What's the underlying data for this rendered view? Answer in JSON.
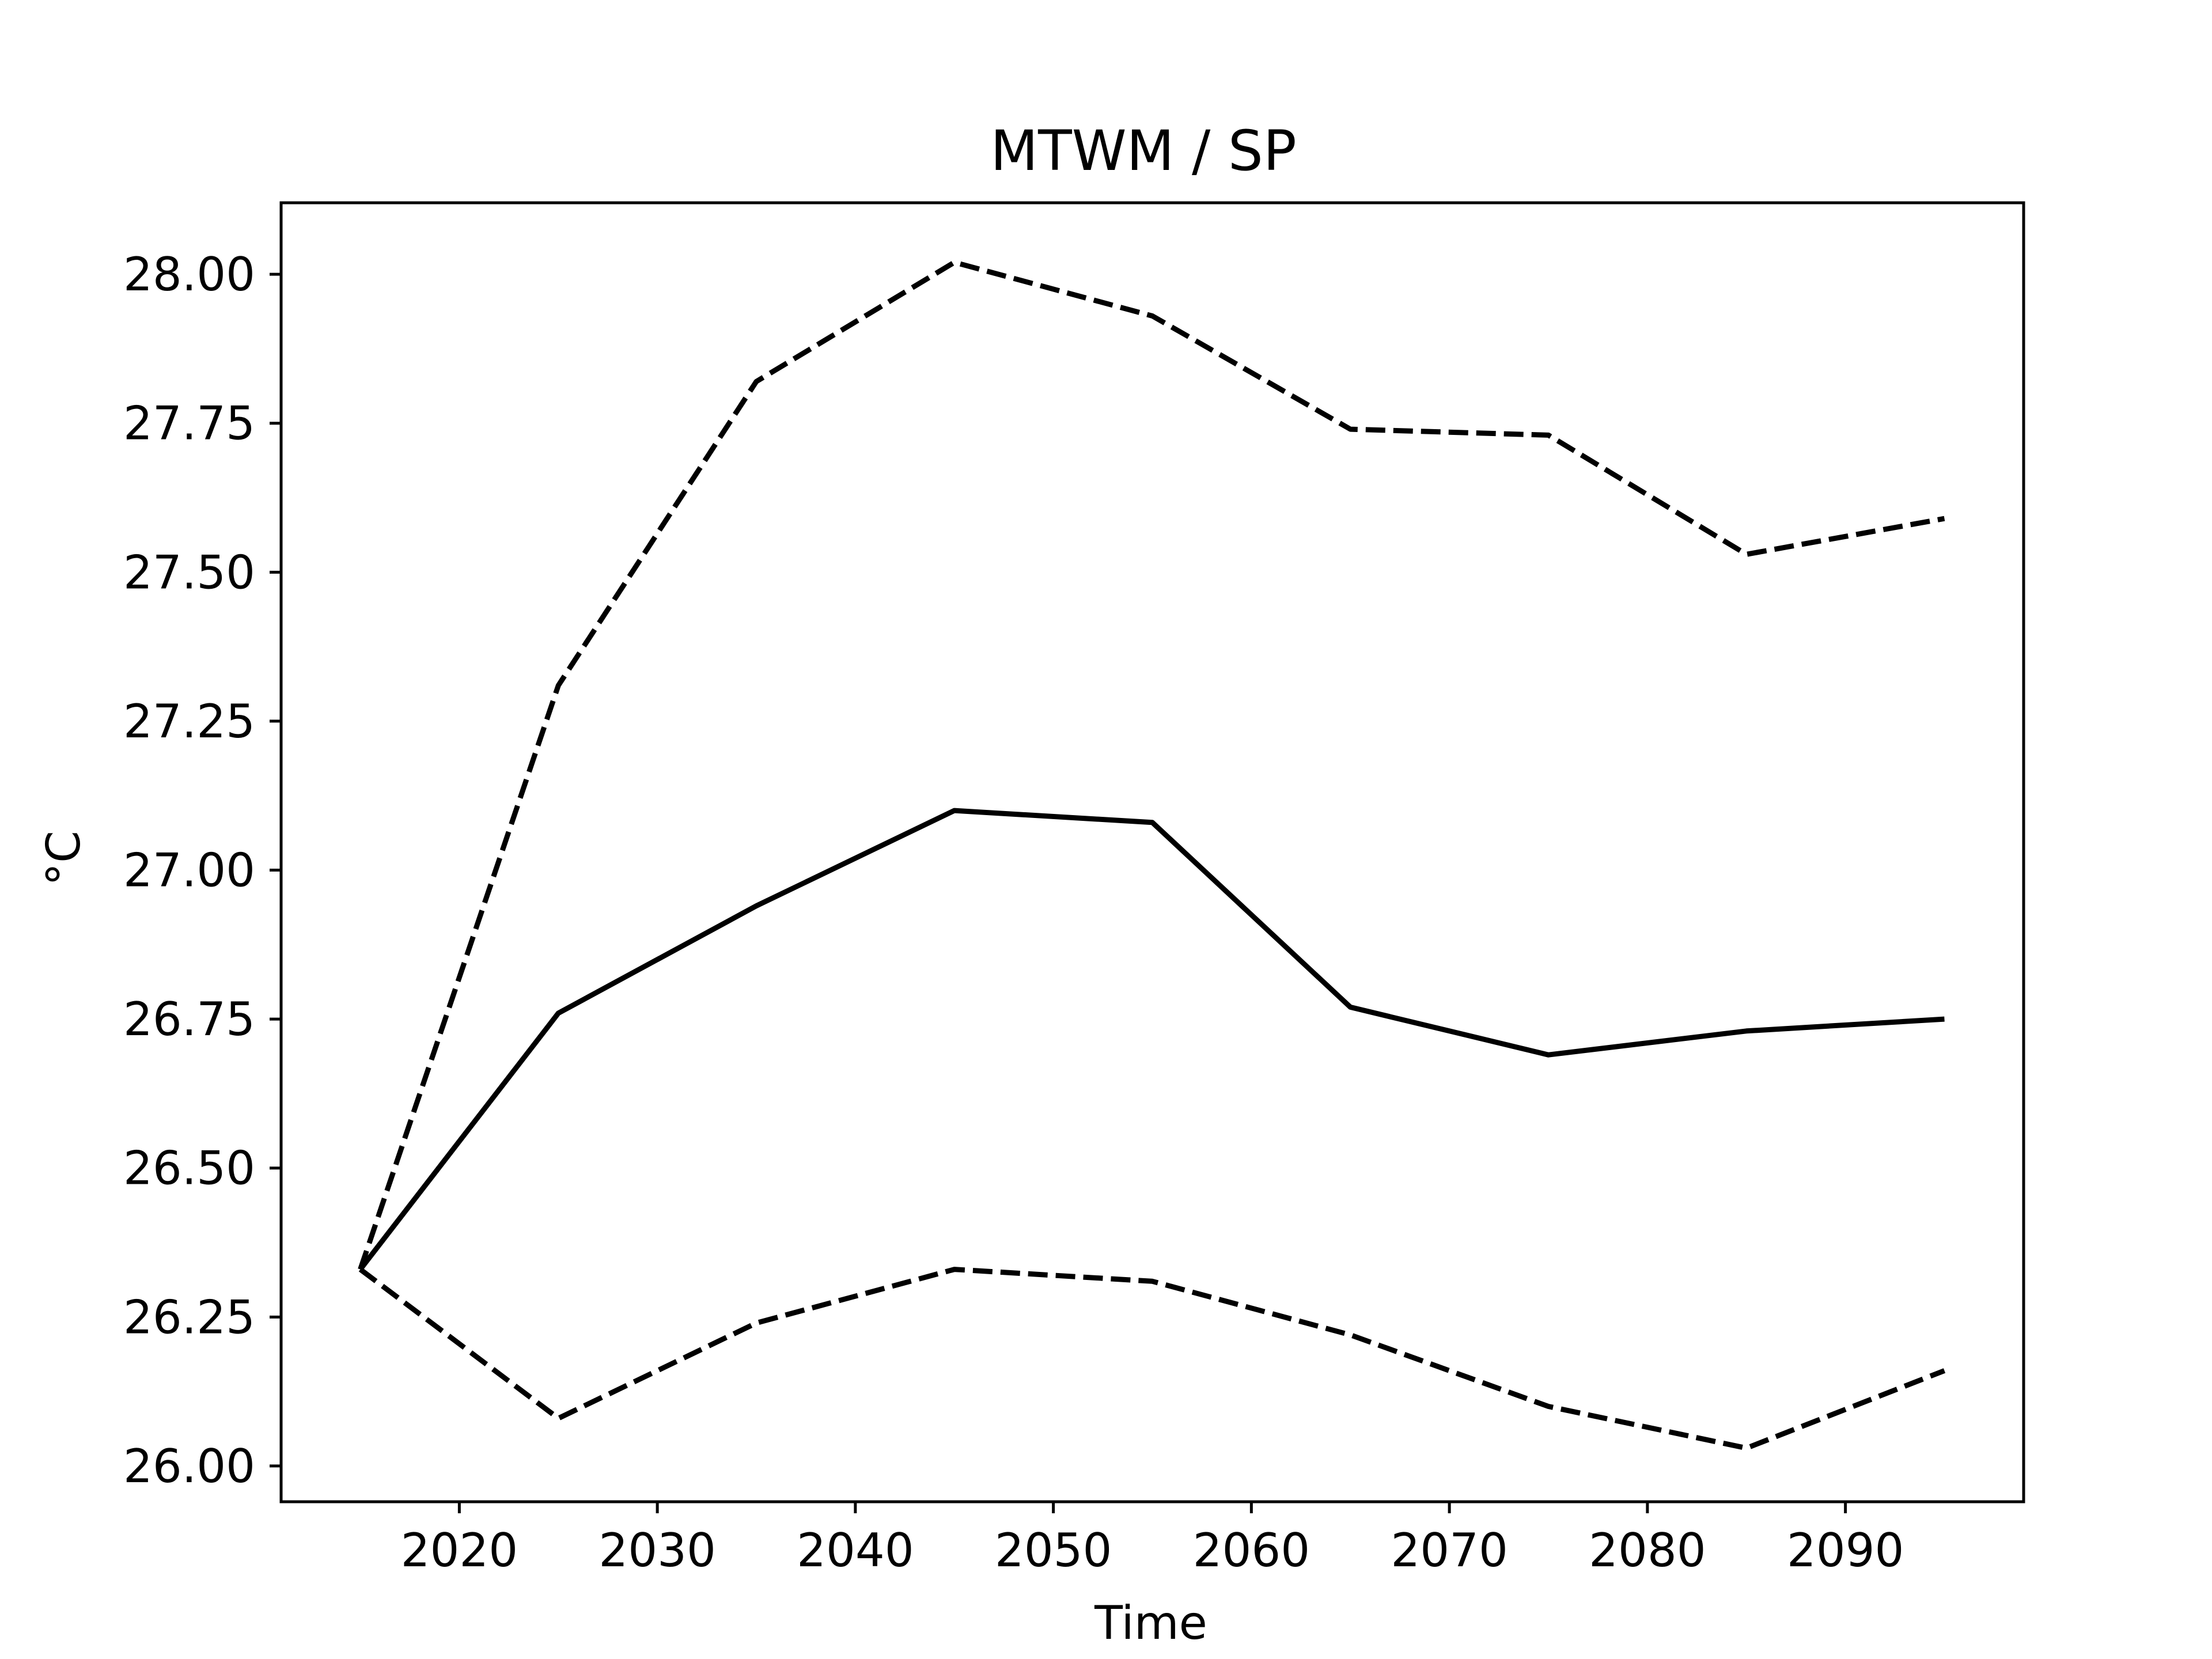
{
  "chart_data": {
    "type": "line",
    "title": "MTWM / SP",
    "xlabel": "Time",
    "ylabel": "°C",
    "xlim": [
      2011,
      2099
    ],
    "ylim": [
      25.94,
      28.12
    ],
    "x_ticks": [
      2020,
      2030,
      2040,
      2050,
      2060,
      2070,
      2080,
      2090
    ],
    "y_ticks": [
      26.0,
      26.25,
      26.5,
      26.75,
      27.0,
      27.25,
      27.5,
      27.75,
      28.0
    ],
    "y_tick_labels": [
      "26.00",
      "26.25",
      "26.50",
      "26.75",
      "27.00",
      "27.25",
      "27.50",
      "27.75",
      "28.00"
    ],
    "x": [
      2015,
      2025,
      2035,
      2045,
      2055,
      2065,
      2075,
      2085,
      2095
    ],
    "grid": false,
    "series": [
      {
        "style": "solid",
        "color": "#000000",
        "values": [
          26.33,
          26.76,
          26.94,
          27.1,
          27.08,
          26.77,
          26.69,
          26.73,
          26.75
        ]
      },
      {
        "style": "dashed",
        "color": "#000000",
        "values": [
          26.33,
          27.31,
          27.82,
          28.02,
          27.93,
          27.74,
          27.73,
          27.53,
          27.59
        ]
      },
      {
        "style": "dashed",
        "color": "#000000",
        "values": [
          26.33,
          26.08,
          26.24,
          26.33,
          26.31,
          26.22,
          26.1,
          26.03,
          26.16
        ]
      }
    ]
  }
}
